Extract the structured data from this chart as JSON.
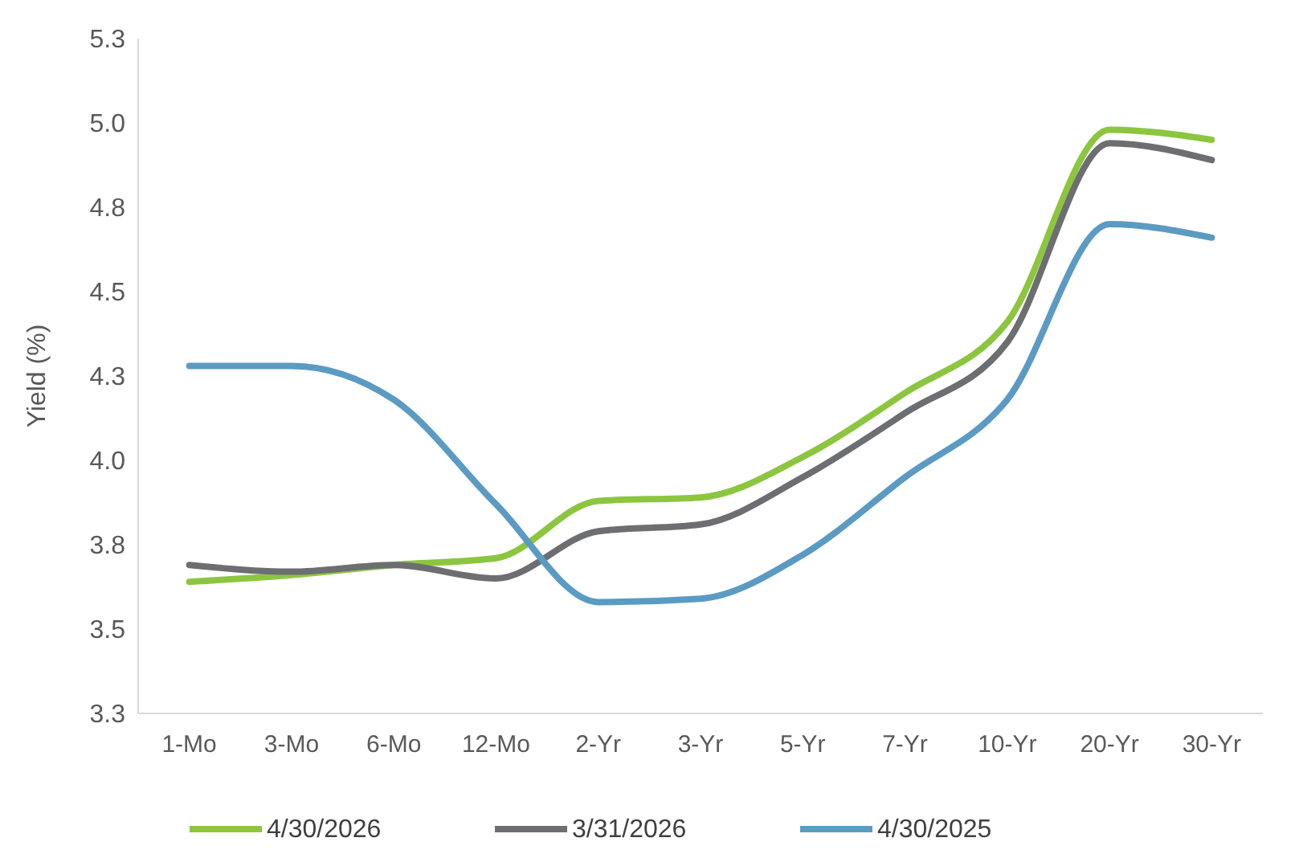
{
  "chart_data": {
    "type": "line",
    "ylabel": "Yield (%)",
    "categories": [
      "1-Mo",
      "3-Mo",
      "6-Mo",
      "12-Mo",
      "2-Yr",
      "3-Yr",
      "5-Yr",
      "7-Yr",
      "10-Yr",
      "20-Yr",
      "30-Yr"
    ],
    "series": [
      {
        "name": "4/30/2026",
        "color": "#8cc63f",
        "values": [
          3.64,
          3.66,
          3.69,
          3.71,
          3.88,
          3.89,
          4.01,
          4.2,
          4.41,
          4.98,
          4.95
        ]
      },
      {
        "name": "3/31/2026",
        "color": "#6d6e71",
        "values": [
          3.69,
          3.67,
          3.69,
          3.65,
          3.79,
          3.81,
          3.95,
          4.14,
          4.35,
          4.94,
          4.89
        ]
      },
      {
        "name": "4/30/2025",
        "color": "#5b9bc3",
        "values": [
          4.28,
          4.28,
          4.18,
          3.87,
          3.58,
          3.59,
          3.72,
          3.95,
          4.18,
          4.7,
          4.66
        ]
      }
    ],
    "ylim": [
      3.25,
      5.25
    ],
    "yticks": [
      {
        "value": 3.25,
        "label": "3.3"
      },
      {
        "value": 3.5,
        "label": "3.5"
      },
      {
        "value": 3.75,
        "label": "3.8"
      },
      {
        "value": 4,
        "label": "4.0"
      },
      {
        "value": 4.25,
        "label": "4.3"
      },
      {
        "value": 4.5,
        "label": "4.5"
      },
      {
        "value": 4.75,
        "label": "4.8"
      },
      {
        "value": 5,
        "label": "5.0"
      },
      {
        "value": 5.25,
        "label": "5.3"
      }
    ],
    "grid": false,
    "legend": "bottom",
    "marker": "none",
    "line_style": "solid"
  }
}
